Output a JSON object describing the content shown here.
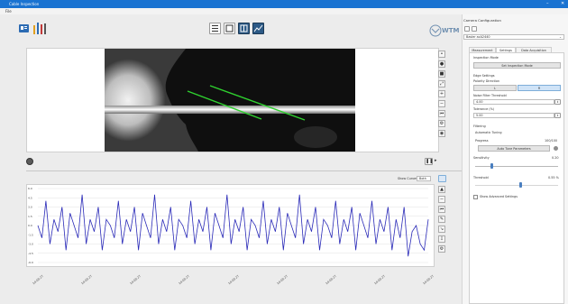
{
  "window": {
    "title": "Cable Inspection",
    "controls": [
      "–",
      "□",
      "✕"
    ]
  },
  "menu": {
    "file": "File"
  },
  "toolbar": {
    "buttons": [
      "list-view",
      "single-view",
      "split-view",
      "chart-view"
    ],
    "logo_text": "WTM"
  },
  "image_view": {
    "side_tools": [
      "pointer",
      "record",
      "stop",
      "zoom-fit",
      "zoom-in",
      "zoom-out",
      "step-back",
      "settings",
      "capture"
    ],
    "bottom_left_icon": "camera",
    "bottom_right_icons": [
      "pause",
      "forward"
    ]
  },
  "plot": {
    "show_curves_label": "Show Curves",
    "show_curves_value": "Both",
    "tools": [
      "zoom-fit",
      "up",
      "down",
      "step-back",
      "edit",
      "trend",
      "save",
      "gear"
    ]
  },
  "panel": {
    "header": "Camera Configuration",
    "camera_select": "Basler acA2440",
    "tabs": [
      "Measurement",
      "Settings",
      "Data Acquisition"
    ],
    "active_tab": 1,
    "inspection_mode_label": "Inspection Mode",
    "inspection_mode_button": "Set Inspection Mode",
    "edge_settings_label": "Edge Settings",
    "polarity_label": "Polarity Direction",
    "polarity_options": [
      "L",
      "R"
    ],
    "polarity_selected": 1,
    "noise_label": "Noise Filter Threshold",
    "noise_value": "4.00",
    "tolerance_label": "Tolerance (%)",
    "tolerance_value": "5.00",
    "filtering_label": "Filtering",
    "auto_tuning_label": "Automatic Tuning",
    "progress_label": "Progress",
    "progress_value": "100/100",
    "auto_tune_button": "Auto Tune Parameters",
    "sensitivity_label": "Sensitivity",
    "sensitivity_value": "0.20",
    "sensitivity_level": 0.2,
    "threshold_label": "Threshold",
    "threshold_value": "0.55 %",
    "threshold_level": 0.55,
    "advanced_label": "Show Advanced Settings"
  },
  "chart_data": {
    "type": "line",
    "ylim": [
      -6,
      6
    ],
    "ytick_labels": [
      "6.0",
      "4.5",
      "3.0",
      "1.5",
      "0.0",
      "-1.5",
      "-3.0",
      "-4.5",
      "-6.0"
    ],
    "xtick_labels": [
      "14:00:27",
      "14:00:27",
      "14:00:27",
      "14:00:27",
      "14:00:27",
      "14:00:27",
      "14:00:27",
      "14:00:27",
      "14:00:27"
    ],
    "series": [
      {
        "color": "#2a2ab8",
        "values": [
          0,
          -2,
          4,
          -3,
          1,
          -1,
          3,
          -4,
          2,
          0,
          -2,
          5,
          -3,
          1,
          -1,
          3,
          -4,
          1,
          0,
          -2,
          4,
          -3,
          1,
          -1,
          3,
          -4,
          2,
          0,
          -2,
          5,
          -3,
          1,
          -1,
          3,
          -4,
          1,
          0,
          -2,
          4,
          -3,
          1,
          -1,
          3,
          -4,
          2,
          0,
          -2,
          5,
          -3,
          1,
          -1,
          3,
          -4,
          1,
          0,
          -2,
          4,
          -3,
          1,
          -1,
          3,
          -4,
          2,
          0,
          -2,
          5,
          -3,
          1,
          -1,
          3,
          -4,
          1,
          0,
          -2,
          4,
          -3,
          1,
          -1,
          3,
          -4,
          2,
          0,
          -2,
          4,
          -3,
          1,
          -1,
          3,
          -4,
          1,
          -2,
          3,
          -5,
          -1,
          0,
          -3,
          -4,
          1
        ]
      }
    ]
  },
  "colors": {
    "accent": "#1a73d1",
    "trace": "#2a2ab8",
    "edge_marker": "#2fd12f"
  }
}
